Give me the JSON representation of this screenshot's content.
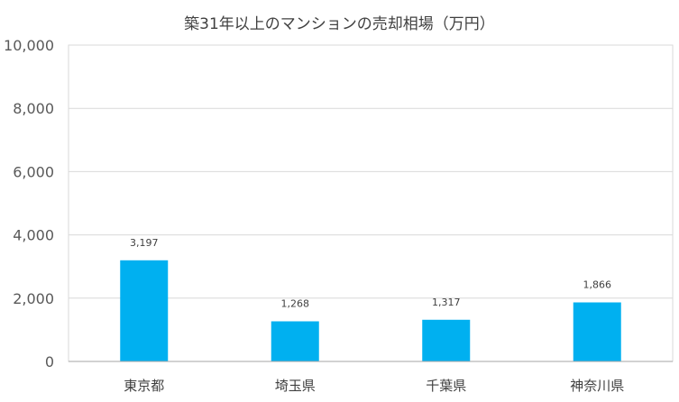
{
  "chart_data": {
    "type": "bar",
    "title": "築31年以上のマンションの売却相場（万円）",
    "categories": [
      "東京都",
      "埼玉県",
      "千葉県",
      "神奈川県"
    ],
    "values": [
      3197,
      1268,
      1317,
      1866
    ],
    "data_labels": [
      "3,197",
      "1,268",
      "1,317",
      "1,866"
    ],
    "yticks": [
      "0",
      "2,000",
      "4,000",
      "6,000",
      "8,000",
      "10,000"
    ],
    "ylim": [
      0,
      10000
    ],
    "grid": true,
    "legend": "none",
    "bar_color": "#00B0F0",
    "grid_color": "#D9D9D9",
    "axis_color": "#A6A6A6"
  }
}
